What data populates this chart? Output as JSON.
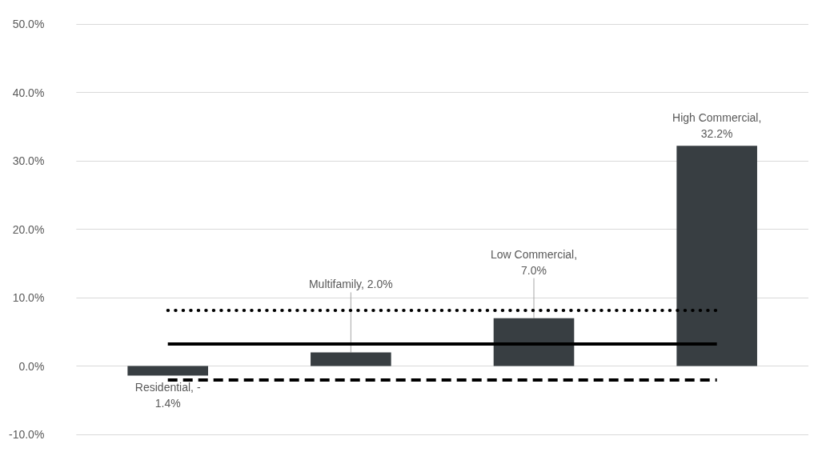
{
  "chart_data": {
    "type": "bar",
    "categories": [
      null,
      null,
      null,
      null
    ],
    "values": [
      -1.4,
      2.0,
      7.0,
      32.2
    ],
    "color": "#383e42",
    "value_labels": [
      "Residential, -\n1.4%",
      "Multifamily, 2.0%",
      "Low Commercial,\n7.0%",
      "High Commercial,\n32.2%"
    ],
    "ylim": [
      -10,
      50
    ],
    "yticks": [
      {
        "value": -10,
        "label": "-10.0%"
      },
      {
        "value": 0,
        "label": "0.0%"
      },
      {
        "value": 10,
        "label": "10.0%"
      },
      {
        "value": 20,
        "label": "20.0%"
      },
      {
        "value": 30,
        "label": "30.0%"
      },
      {
        "value": 40,
        "label": "40.0%"
      },
      {
        "value": 50,
        "label": "50.0%"
      }
    ],
    "ref_lines": [
      {
        "axis": "y",
        "value": 8.1,
        "line_style": "dotted",
        "color": "#000000"
      },
      {
        "axis": "y",
        "value": 3.2,
        "line_style": "solid",
        "color": "#000000"
      },
      {
        "axis": "y",
        "value": -2.0,
        "line_style": "dashed",
        "color": "#000000"
      }
    ],
    "grid": "y",
    "tick_labels": "y"
  }
}
